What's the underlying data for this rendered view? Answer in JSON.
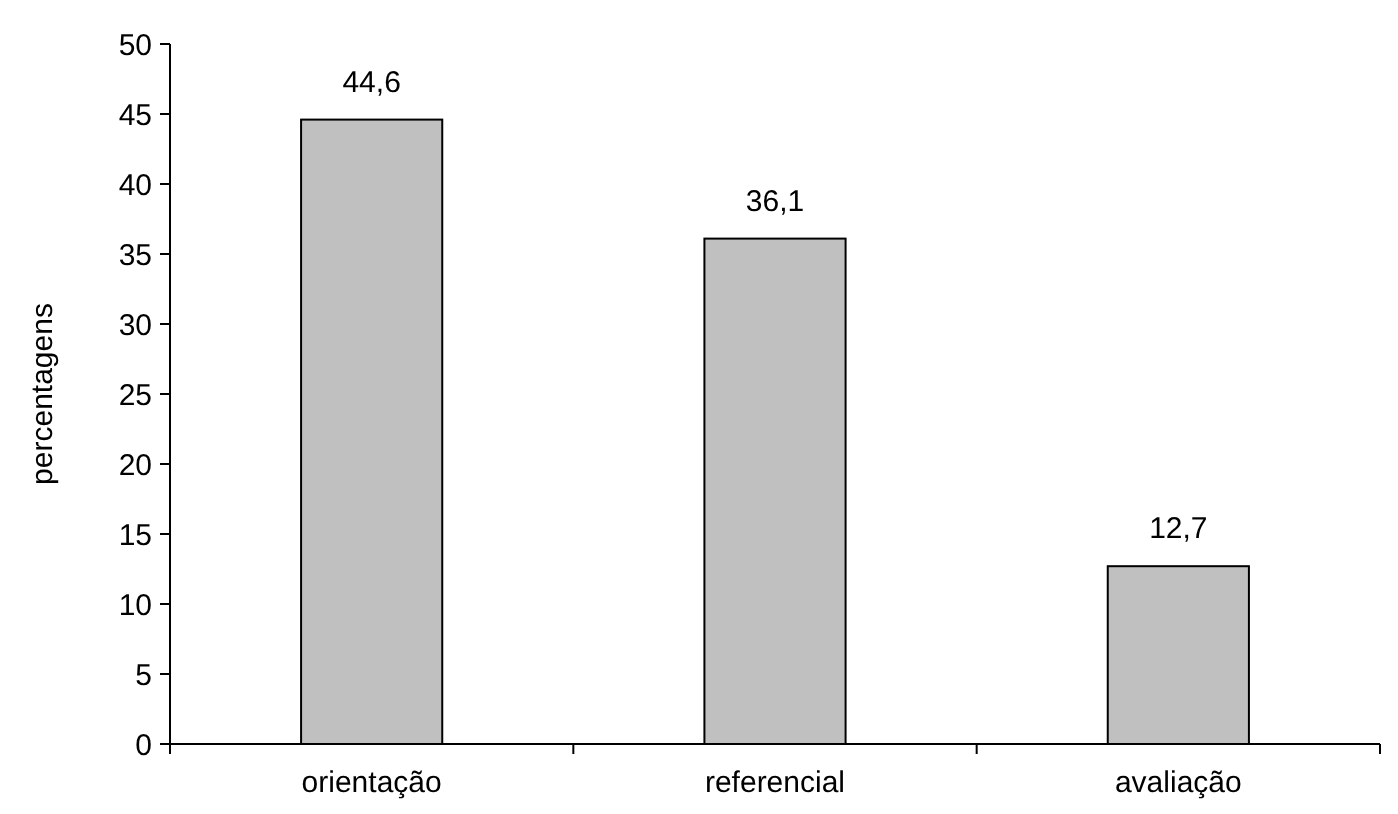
{
  "chart_data": {
    "type": "bar",
    "ylabel": "percentagens",
    "categories": [
      "orientação",
      "referencial",
      "avaliação"
    ],
    "values": [
      44.6,
      36.1,
      12.7
    ],
    "value_labels": [
      "44,6",
      "36,1",
      "12,7"
    ],
    "color": "#c0c0c0",
    "ylim": [
      0,
      50
    ],
    "yticks": [
      0,
      5,
      10,
      15,
      20,
      25,
      30,
      35,
      40,
      45,
      50
    ],
    "grid": false
  }
}
